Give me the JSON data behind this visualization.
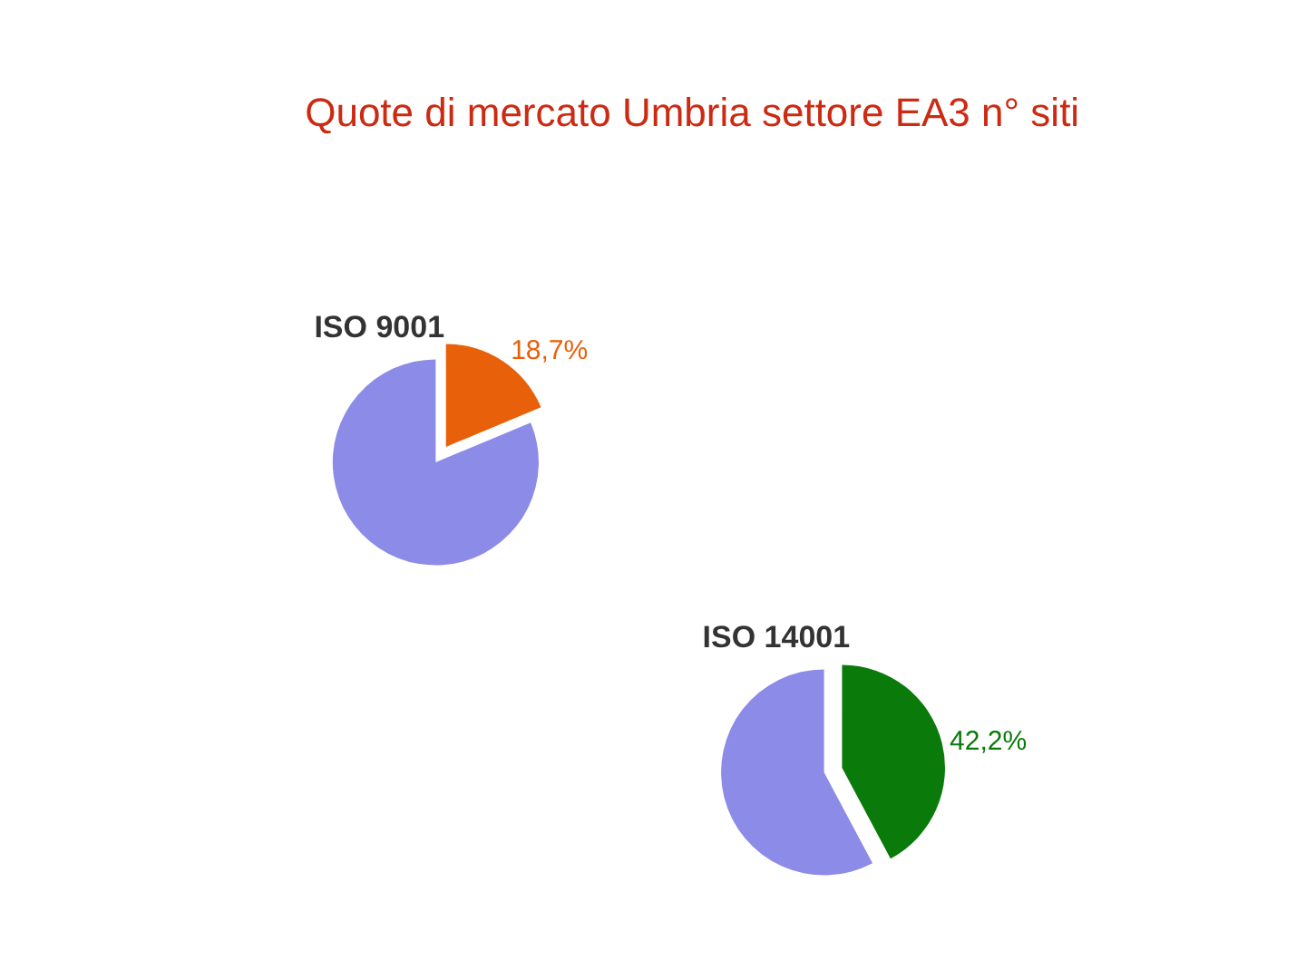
{
  "chart_data": [
    {
      "type": "pie",
      "title": "Quote di mercato Umbria settore EA3 n° siti",
      "subtitle": "ISO 9001",
      "categories": [
        null,
        null
      ],
      "values": [
        18.7,
        81.3
      ],
      "colors": [
        "#e8600a",
        "#8c8ce8"
      ],
      "value_labels": [
        "18,7%",
        null
      ],
      "legend": false
    },
    {
      "type": "pie",
      "subtitle": "ISO 14001",
      "categories": [
        null,
        null
      ],
      "values": [
        42.2,
        57.8
      ],
      "colors": [
        "#0a7a0a",
        "#8c8ce8"
      ],
      "value_labels": [
        "42,2%",
        null
      ],
      "legend": false
    }
  ]
}
